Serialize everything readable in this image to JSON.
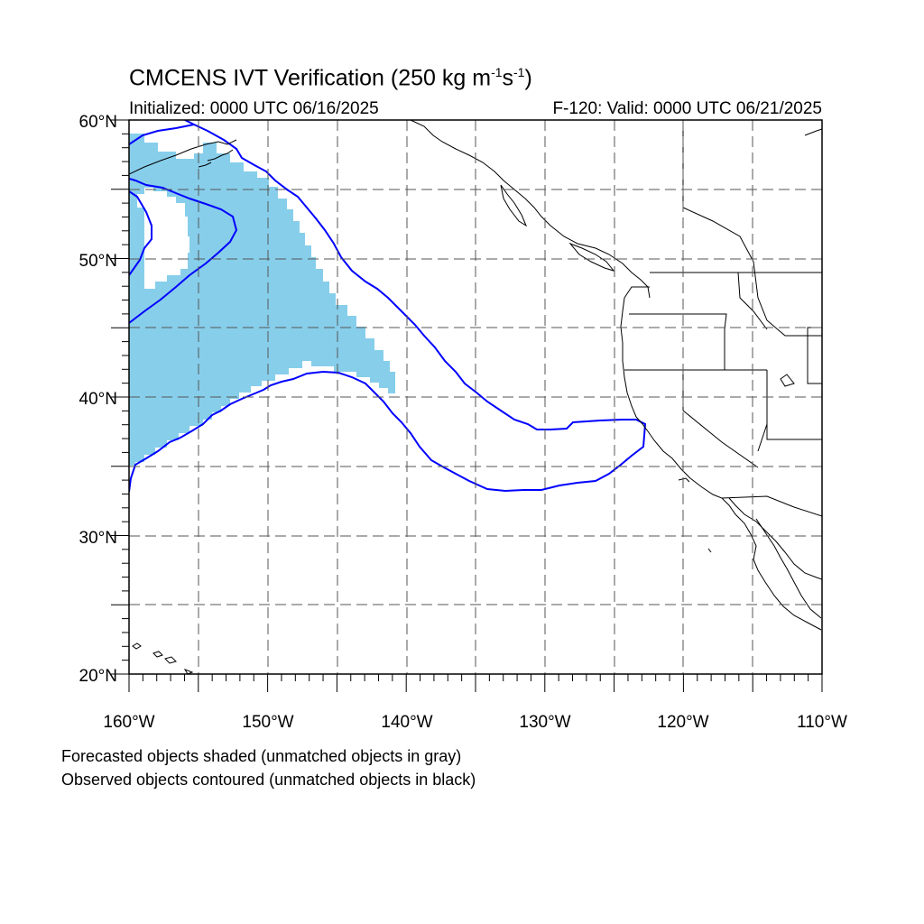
{
  "title": {
    "prefix": "CMCENS IVT Verification (250 kg m",
    "sup1": "-1",
    "mid": "s",
    "sup2": "-1",
    "suffix": ")"
  },
  "subtitle": {
    "left": "Initialized: 0000 UTC 06/16/2025",
    "right": "F-120: Valid: 0000 UTC 06/21/2025"
  },
  "map": {
    "extent": {
      "lon_min": -160,
      "lon_max": -110,
      "lat_min": 20,
      "lat_max": 60
    },
    "lat_labels": [
      {
        "lat": 60,
        "text": "60°N"
      },
      {
        "lat": 50,
        "text": "50°N"
      },
      {
        "lat": 40,
        "text": "40°N"
      },
      {
        "lat": 30,
        "text": "30°N"
      },
      {
        "lat": 20,
        "text": "20°N"
      }
    ],
    "lon_labels": [
      {
        "lon": -160,
        "text": "160°W"
      },
      {
        "lon": -150,
        "text": "150°W"
      },
      {
        "lon": -140,
        "text": "140°W"
      },
      {
        "lon": -130,
        "text": "130°W"
      },
      {
        "lon": -120,
        "text": "120°W"
      },
      {
        "lon": -110,
        "text": "110°W"
      }
    ],
    "colors": {
      "forecast_fill": "#87ceeb",
      "observed_contour": "#0000ff",
      "grid": "#555555",
      "coast": "#000000"
    }
  },
  "notes": {
    "line1": "Forecasted objects shaded (unmatched objects in gray)",
    "line2": "Observed objects contoured (unmatched objects in black)"
  }
}
